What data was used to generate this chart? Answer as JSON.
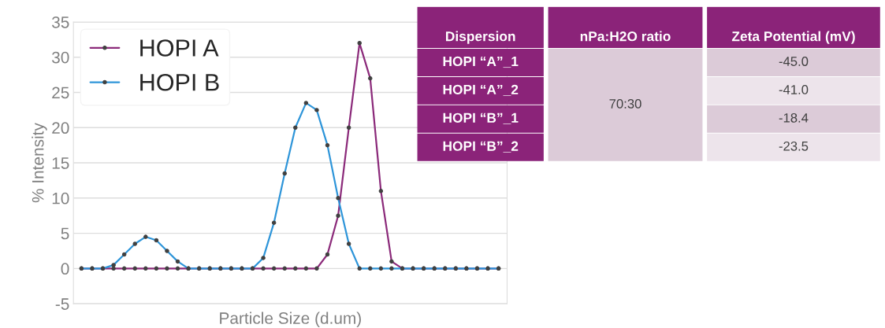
{
  "chart_data": [
    {
      "type": "line",
      "xlabel": "Particle Size (d.um)",
      "ylabel": "% Intensity",
      "categories": [
        null,
        null,
        null,
        null,
        null,
        null,
        null,
        null,
        null,
        null,
        null,
        null,
        null,
        null,
        null,
        null,
        null,
        null,
        null,
        null,
        null,
        null,
        null,
        null,
        null,
        null,
        null,
        null,
        null,
        null,
        null,
        null,
        null,
        null,
        null,
        null,
        null,
        null,
        null,
        null
      ],
      "series": [
        {
          "name": "HOPI A",
          "color": "#8b2a7a",
          "values": [
            0,
            0,
            0,
            0,
            0,
            0,
            0,
            0,
            0,
            0,
            0,
            0,
            0,
            0,
            0,
            0,
            0,
            0,
            0,
            0,
            0,
            0,
            0,
            2,
            7.5,
            20,
            32,
            27,
            11,
            1,
            0,
            0,
            0,
            0,
            0,
            0,
            0,
            0,
            0,
            0
          ]
        },
        {
          "name": "HOPI B",
          "color": "#2e95d9",
          "values": [
            0,
            0,
            0,
            0.5,
            2,
            3.5,
            4.5,
            4,
            2.5,
            1,
            0,
            0,
            0,
            0,
            0,
            0,
            0,
            1.5,
            6.5,
            13.5,
            20,
            23.5,
            22.5,
            17.5,
            10,
            3.5,
            0,
            0,
            0,
            0,
            0,
            0,
            0,
            0,
            0,
            0,
            0,
            0,
            0,
            0
          ]
        }
      ],
      "ylim": [
        -5,
        35
      ],
      "yticks": [
        -5,
        0,
        5,
        10,
        15,
        20,
        25,
        30,
        35
      ],
      "grid": "y",
      "legend": "top left",
      "marker": "circle",
      "line_style": "solid"
    },
    {
      "type": "other",
      "categories": [
        "Dispersion",
        "nPa:H2O ratio",
        "Zeta Potential (mV)"
      ],
      "y_categories": [
        "HOPI “A”_1",
        "HOPI “A”_2",
        "HOPI “B”_1",
        "HOPI “B”_2"
      ],
      "cell_labels": [
        [
          "70:30",
          "-45.0"
        ],
        [
          null,
          "-41.0"
        ],
        [
          null,
          "-18.4"
        ],
        [
          null,
          "-23.5"
        ]
      ]
    }
  ]
}
